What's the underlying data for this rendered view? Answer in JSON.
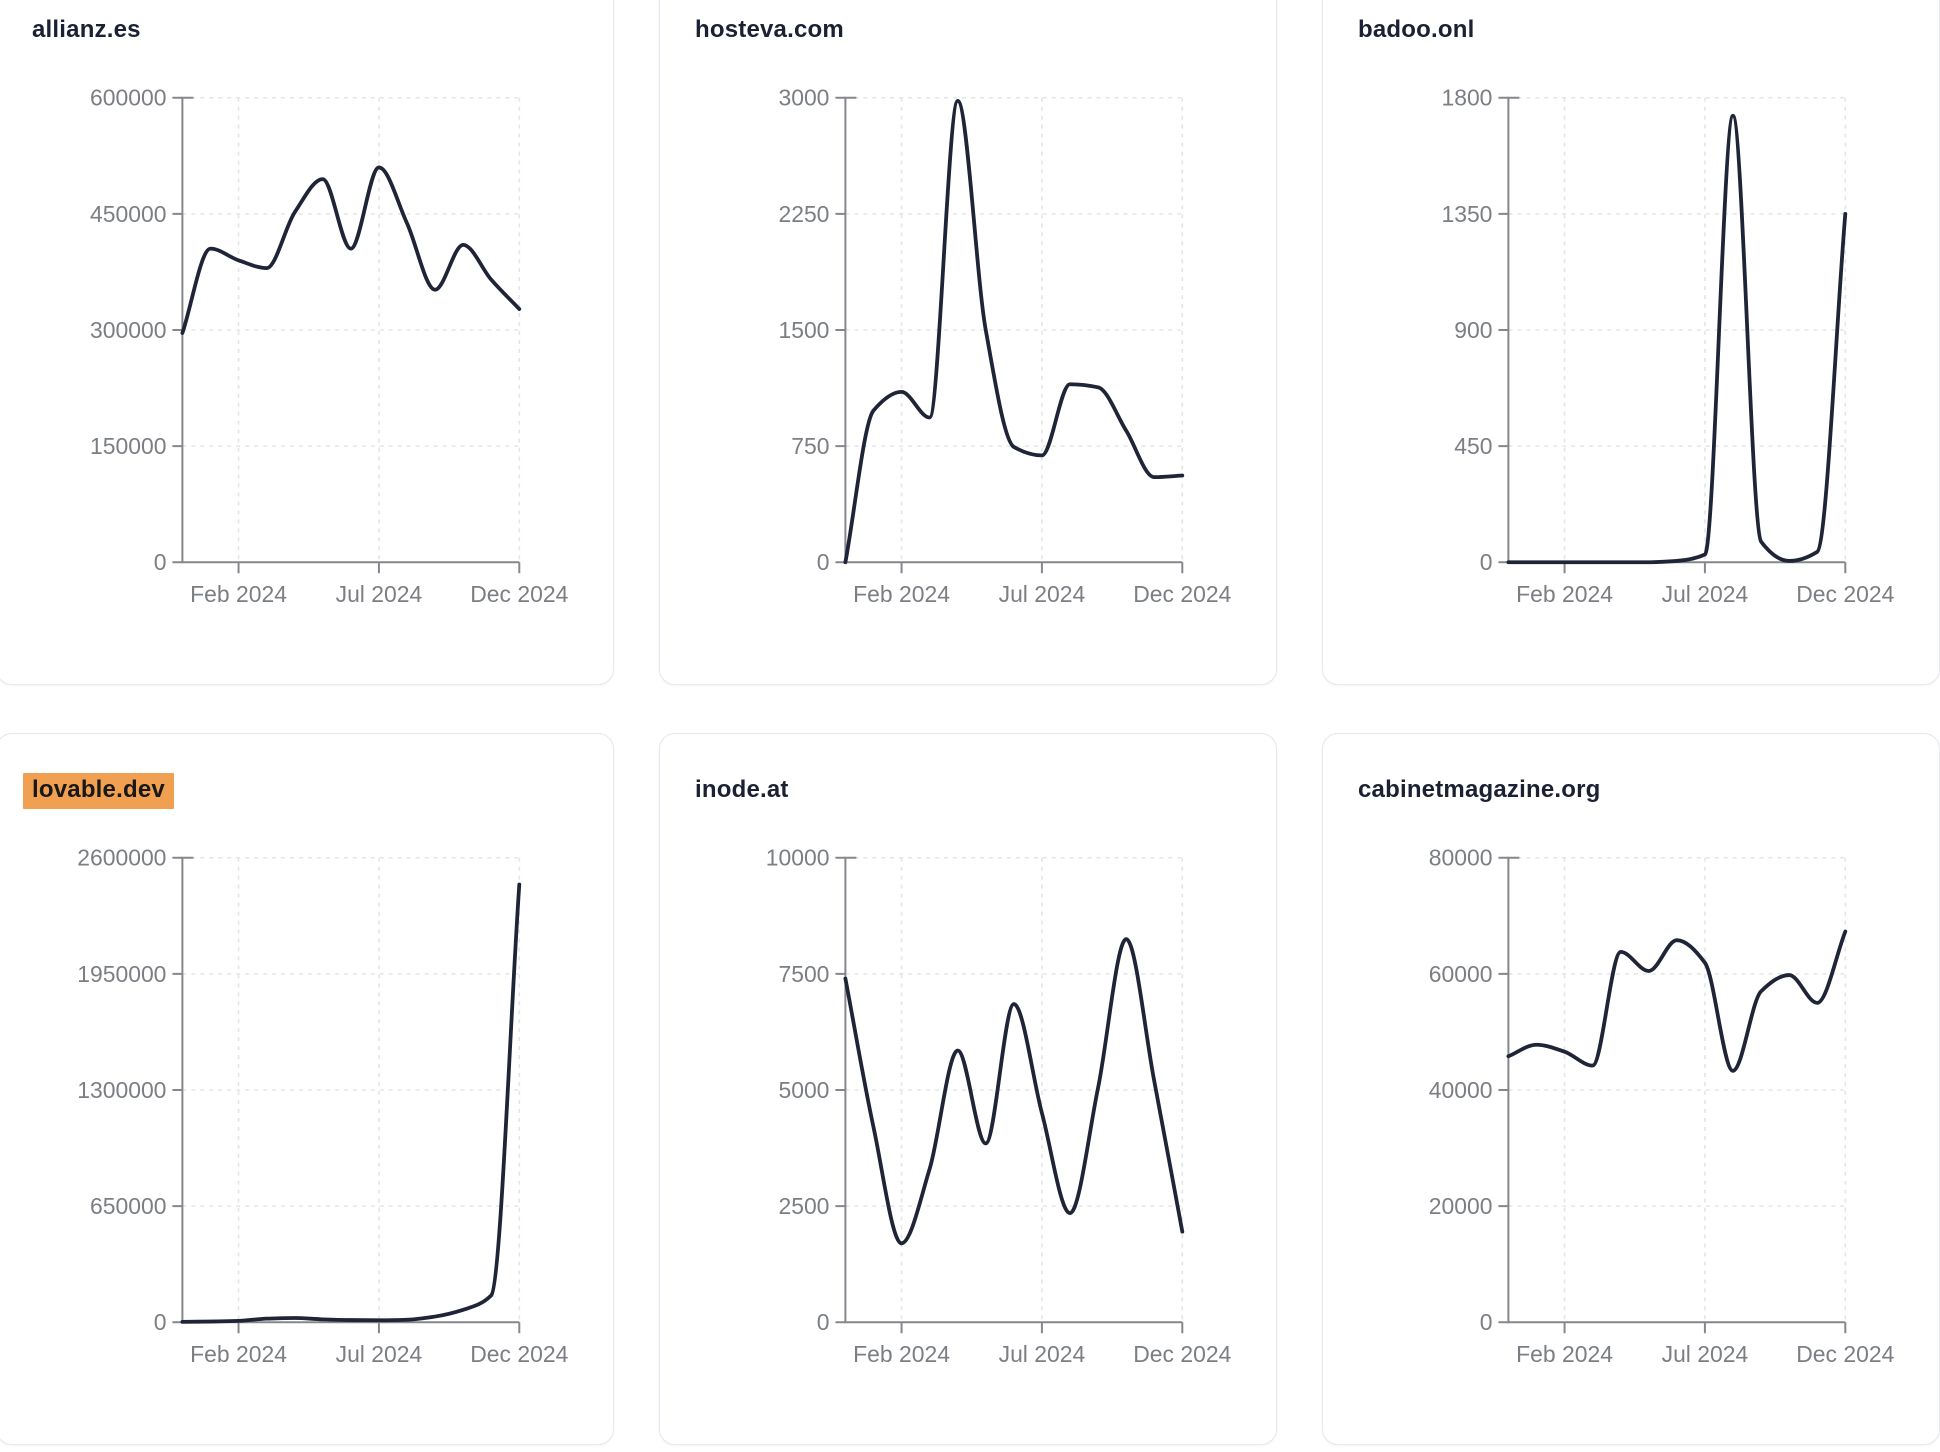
{
  "theme": {
    "page_background": "#ffffff",
    "card_background": "#ffffff",
    "card_border": "#e4e8f0",
    "title_color": "#1b2133",
    "axis_color": "#85878b",
    "grid_color": "#e4e5ea",
    "tick_label_color": "#7b7e83"
  },
  "x_axis": {
    "domain": [
      "Dec 2023",
      "Dec 2024"
    ],
    "tick_labels": [
      "Feb 2024",
      "Jul 2024",
      "Dec 2024"
    ],
    "tick_month_indices": [
      2,
      7,
      12
    ]
  },
  "chart_data": [
    {
      "type": "line",
      "title": "allianz.es",
      "title_highlight": false,
      "line_color": "#1f2437",
      "grid": "dashed",
      "categories": [
        "Dec 2023",
        "Jan 2024",
        "Feb 2024",
        "Mar 2024",
        "Apr 2024",
        "May 2024",
        "Jun 2024",
        "Jul 2024",
        "Aug 2024",
        "Sep 2024",
        "Oct 2024",
        "Nov 2024",
        "Dec 2024"
      ],
      "values": [
        296000,
        405000,
        390000,
        380000,
        452000,
        495000,
        405000,
        510000,
        438000,
        352000,
        410000,
        365000,
        327000
      ],
      "y_ticks": [
        0,
        150000,
        300000,
        450000,
        600000
      ],
      "ylim": [
        0,
        600000
      ],
      "x_tick_labels": [
        "Feb 2024",
        "Jul 2024",
        "Dec 2024"
      ]
    },
    {
      "type": "line",
      "title": "hosteva.com",
      "title_highlight": false,
      "line_color": "#1f2437",
      "grid": "dashed",
      "categories": [
        "Dec 2023",
        "Jan 2024",
        "Feb 2024",
        "Mar 2024",
        "Apr 2024",
        "May 2024",
        "Jun 2024",
        "Jul 2024",
        "Aug 2024",
        "Sep 2024",
        "Oct 2024",
        "Nov 2024",
        "Dec 2024"
      ],
      "values": [
        0,
        980,
        1100,
        935,
        2980,
        1500,
        745,
        690,
        1150,
        1130,
        850,
        550,
        560
      ],
      "y_ticks": [
        0,
        750,
        1500,
        2250,
        3000
      ],
      "ylim": [
        0,
        3000
      ],
      "x_tick_labels": [
        "Feb 2024",
        "Jul 2024",
        "Dec 2024"
      ]
    },
    {
      "type": "line",
      "title": "badoo.onl",
      "title_highlight": false,
      "line_color": "#1f2437",
      "grid": "dashed",
      "categories": [
        "Dec 2023",
        "Jan 2024",
        "Feb 2024",
        "Mar 2024",
        "Apr 2024",
        "May 2024",
        "Jun 2024",
        "Jul 2024",
        "Aug 2024",
        "Sep 2024",
        "Oct 2024",
        "Nov 2024",
        "Dec 2024"
      ],
      "values": [
        0,
        0,
        0,
        0,
        0,
        0,
        5,
        30,
        1730,
        80,
        5,
        40,
        1350
      ],
      "y_ticks": [
        0,
        450,
        900,
        1350,
        1800
      ],
      "ylim": [
        0,
        1800
      ],
      "x_tick_labels": [
        "Feb 2024",
        "Jul 2024",
        "Dec 2024"
      ]
    },
    {
      "type": "line",
      "title": "lovable.dev",
      "title_highlight": true,
      "title_highlight_color": "#f0a050",
      "line_color": "#1f2437",
      "grid": "dashed",
      "categories": [
        "Dec 2023",
        "Jan 2024",
        "Feb 2024",
        "Mar 2024",
        "Apr 2024",
        "May 2024",
        "Jun 2024",
        "Jul 2024",
        "Aug 2024",
        "Sep 2024",
        "Oct 2024",
        "Nov 2024",
        "Dec 2024"
      ],
      "values": [
        2000,
        4000,
        8000,
        20000,
        24000,
        16000,
        12000,
        11000,
        14000,
        32000,
        70000,
        150000,
        2450000
      ],
      "y_ticks": [
        0,
        650000,
        1300000,
        1950000,
        2600000
      ],
      "ylim": [
        0,
        2600000
      ],
      "x_tick_labels": [
        "Feb 2024",
        "Jul 2024",
        "Dec 2024"
      ]
    },
    {
      "type": "line",
      "title": "inode.at",
      "title_highlight": false,
      "line_color": "#1f2437",
      "grid": "dashed",
      "categories": [
        "Dec 2023",
        "Jan 2024",
        "Feb 2024",
        "Mar 2024",
        "Apr 2024",
        "May 2024",
        "Jun 2024",
        "Jul 2024",
        "Aug 2024",
        "Sep 2024",
        "Oct 2024",
        "Nov 2024",
        "Dec 2024"
      ],
      "values": [
        7400,
        4200,
        1700,
        3300,
        5850,
        3850,
        6850,
        4500,
        2350,
        5050,
        8250,
        5200,
        1950
      ],
      "y_ticks": [
        0,
        2500,
        5000,
        7500,
        10000
      ],
      "ylim": [
        0,
        10000
      ],
      "x_tick_labels": [
        "Feb 2024",
        "Jul 2024",
        "Dec 2024"
      ]
    },
    {
      "type": "line",
      "title": "cabinetmagazine.org",
      "title_highlight": false,
      "line_color": "#1f2437",
      "grid": "dashed",
      "categories": [
        "Dec 2023",
        "Jan 2024",
        "Feb 2024",
        "Mar 2024",
        "Apr 2024",
        "May 2024",
        "Jun 2024",
        "Jul 2024",
        "Aug 2024",
        "Sep 2024",
        "Oct 2024",
        "Nov 2024",
        "Dec 2024"
      ],
      "values": [
        45800,
        47800,
        46600,
        44200,
        63800,
        60500,
        65800,
        61900,
        43300,
        57000,
        59800,
        55000,
        67300
      ],
      "y_ticks": [
        0,
        20000,
        40000,
        60000,
        80000
      ],
      "ylim": [
        0,
        80000
      ],
      "x_tick_labels": [
        "Feb 2024",
        "Jul 2024",
        "Dec 2024"
      ]
    }
  ]
}
